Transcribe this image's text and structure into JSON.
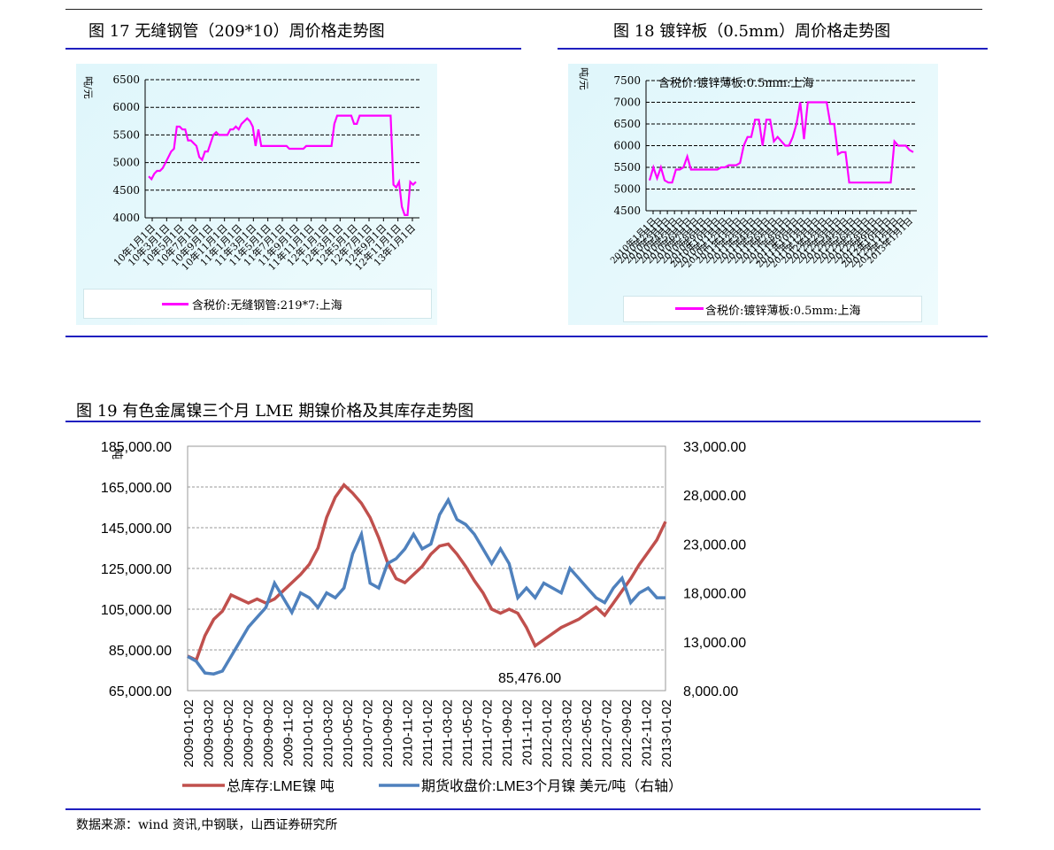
{
  "fig17": {
    "title": "图 17 无缝钢管（209*10）周价格走势图",
    "unit": "吨/元",
    "legend": "含税价:无缝钢管:219*7:上海",
    "chart_data": {
      "type": "line",
      "ylim": [
        4000,
        6500
      ],
      "yticks": [
        "6500",
        "6000",
        "5500",
        "5000",
        "4500",
        "4000"
      ],
      "xticks": [
        "10年1月1日",
        "10年3月1日",
        "10年5月1日",
        "10年7月1日",
        "10年9月1日",
        "10年11月1日",
        "11年1月1日",
        "11年3月1日",
        "11年5月1日",
        "11年7月1日",
        "11年9月1日",
        "11年11月1日",
        "12年1月1日",
        "12年3月1日",
        "12年5月1日",
        "12年7月1日",
        "12年9月1日",
        "12年11月1日",
        "13年1月1日"
      ],
      "series": [
        {
          "name": "含税价:无缝钢管:219*7:上海",
          "color": "#ff00ff",
          "values": [
            4750,
            4700,
            4800,
            4850,
            4850,
            4900,
            5000,
            5100,
            5200,
            5250,
            5650,
            5650,
            5600,
            5600,
            5400,
            5400,
            5350,
            5300,
            5100,
            5050,
            5200,
            5200,
            5350,
            5500,
            5550,
            5500,
            5500,
            5500,
            5500,
            5600,
            5600,
            5650,
            5600,
            5700,
            5750,
            5800,
            5750,
            5650,
            5300,
            5600,
            5300,
            5300,
            5300,
            5300,
            5300,
            5300,
            5300,
            5300,
            5300,
            5300,
            5250,
            5250,
            5250,
            5250,
            5250,
            5250,
            5300,
            5300,
            5300,
            5300,
            5300,
            5300,
            5300,
            5300,
            5300,
            5300,
            5700,
            5850,
            5850,
            5850,
            5850,
            5850,
            5850,
            5700,
            5700,
            5850,
            5850,
            5850,
            5850,
            5850,
            5850,
            5850,
            5850,
            5850,
            5850,
            5850,
            5850,
            4600,
            4550,
            4650,
            4200,
            4050,
            4050,
            4650,
            4600,
            4650
          ]
        }
      ]
    }
  },
  "fig18": {
    "title": "图 18  镀锌板（0.5mm）周价格走势图",
    "unit": "吨/元",
    "series_label": "含税价:镀锌薄板:0.5mm:上海",
    "legend": "含税价:镀锌薄板:0.5mm:上海",
    "chart_data": {
      "type": "line",
      "ylim": [
        4500,
        7500
      ],
      "yticks": [
        "7500",
        "7000",
        "6500",
        "6000",
        "5500",
        "5000",
        "4500"
      ],
      "xticks": [
        "2010年1月1日",
        "2010年2月1日",
        "2010年3月1日",
        "2010年4月1日",
        "2010年5月1日",
        "2010年6月1日",
        "2010年7月1日",
        "2010年8月1日",
        "2010年9月1日",
        "2010年10月1日",
        "2010年11月1日",
        "2010年12月1日",
        "2011年1月1日",
        "2011年2月1日",
        "2011年3月1日",
        "2011年4月1日",
        "2011年5月1日",
        "2011年6月1日",
        "2011年7月1日",
        "2011年8月1日",
        "2011年9月1日",
        "2011年10月1日",
        "2011年11月1日",
        "2011年12月1日",
        "2012年1月1日",
        "2012年2月1日",
        "2012年3月1日",
        "2012年4月1日",
        "2012年5月1日",
        "2012年6月1日",
        "2012年7月1日",
        "2012年8月1日",
        "2012年9月1日",
        "2012年10月1日",
        "2012年11月1日",
        "2012年12月1日",
        "2013年1月1日"
      ],
      "series": [
        {
          "name": "含税价:镀锌薄板:0.5mm:上海",
          "color": "#ff00ff",
          "values": [
            5200,
            5500,
            5250,
            5500,
            5200,
            5150,
            5150,
            5450,
            5450,
            5500,
            5750,
            5450,
            5450,
            5450,
            5450,
            5450,
            5450,
            5450,
            5450,
            5500,
            5500,
            5550,
            5550,
            5550,
            5600,
            6000,
            6200,
            6200,
            6600,
            6600,
            6000,
            6600,
            6600,
            6100,
            6200,
            6100,
            6000,
            6000,
            6200,
            6500,
            7000,
            6150,
            7000,
            7000,
            7000,
            7000,
            7000,
            7000,
            6500,
            6500,
            5800,
            5850,
            5850,
            5150,
            5150,
            5150,
            5150,
            5150,
            5150,
            5150,
            5150,
            5150,
            5150,
            5150,
            5150,
            6100,
            6000,
            6000,
            6000,
            5900,
            5850
          ]
        }
      ]
    }
  },
  "fig19": {
    "title": "图 19  有色金属镍三个月 LME 期镍价格及其库存走势图",
    "left_unit": "吨",
    "annotation": "85,476.00",
    "source": "数据来源：wind 资讯,中钢联，山西证券研究所",
    "chart_data": {
      "type": "line",
      "ylim_left": [
        65000,
        185000
      ],
      "ylim_right": [
        8000,
        33000
      ],
      "yticks_left": [
        "185,000.00",
        "165,000.00",
        "145,000.00",
        "125,000.00",
        "105,000.00",
        "85,000.00",
        "65,000.00"
      ],
      "yticks_right": [
        "33,000.00",
        "28,000.00",
        "23,000.00",
        "18,000.00",
        "13,000.00",
        "8,000.00"
      ],
      "xticks": [
        "2009-01-02",
        "2009-03-02",
        "2009-05-02",
        "2009-07-02",
        "2009-09-02",
        "2009-11-02",
        "2010-01-02",
        "2010-03-02",
        "2010-05-02",
        "2010-07-02",
        "2010-09-02",
        "2010-11-02",
        "2011-01-02",
        "2011-03-02",
        "2011-05-02",
        "2011-07-02",
        "2011-09-02",
        "2011-11-02",
        "2012-01-02",
        "2012-03-02",
        "2012-05-02",
        "2012-07-02",
        "2012-09-02",
        "2012-11-02",
        "2013-01-02"
      ],
      "series": [
        {
          "name": "总库存:LME镍 吨",
          "axis": "left",
          "color": "#c0504d",
          "values": [
            82000,
            80000,
            92000,
            100000,
            104000,
            112000,
            110000,
            108000,
            110000,
            108000,
            110000,
            114000,
            118000,
            122000,
            127000,
            135000,
            150000,
            160000,
            166000,
            162000,
            157000,
            150000,
            140000,
            128000,
            120000,
            118000,
            122000,
            126000,
            132000,
            136000,
            137000,
            132000,
            126000,
            119000,
            113000,
            105000,
            103000,
            105000,
            103000,
            96000,
            87000,
            90000,
            93000,
            96000,
            98000,
            100000,
            103000,
            106000,
            102000,
            108000,
            114000,
            120000,
            127000,
            133000,
            139000,
            148000
          ]
        },
        {
          "name": "期货收盘价:LME3个月镍 美元/吨",
          "axis": "right",
          "color": "#4f81bd",
          "values": [
            11500,
            11000,
            9800,
            9700,
            10000,
            11500,
            13000,
            14500,
            15500,
            16500,
            19000,
            17500,
            16000,
            18000,
            17500,
            16500,
            18000,
            17500,
            18500,
            22000,
            24000,
            19000,
            18500,
            21000,
            21500,
            22500,
            24000,
            22500,
            23000,
            26000,
            27500,
            25500,
            25000,
            24000,
            22500,
            21000,
            22500,
            21000,
            17500,
            18500,
            17500,
            19000,
            18500,
            18000,
            20500,
            19500,
            18500,
            17500,
            17000,
            18500,
            19500,
            17000,
            18000,
            18500,
            17500,
            17500
          ]
        }
      ]
    }
  }
}
